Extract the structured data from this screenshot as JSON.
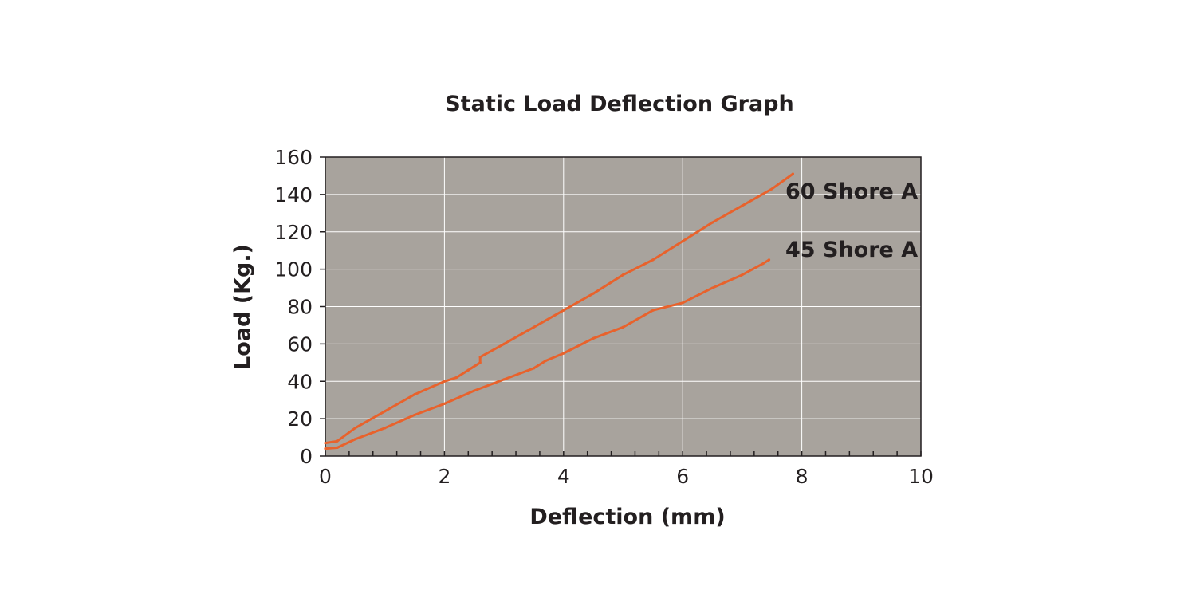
{
  "chart_data": {
    "type": "line",
    "title": "Static Load Deflection Graph",
    "xlabel": "Deflection (mm)",
    "ylabel": "Load (Kg.)",
    "xlim": [
      0,
      10
    ],
    "ylim": [
      0,
      160
    ],
    "xticks": [
      "0",
      "2",
      "4",
      "6",
      "8",
      "10"
    ],
    "yticks": [
      "0",
      "20",
      "40",
      "60",
      "80",
      "100",
      "120",
      "140",
      "160"
    ],
    "grid": true,
    "plot_background": "#a8a39d",
    "line_color": "#e8622c",
    "series": [
      {
        "name": "60 Shore A",
        "x": [
          0,
          0.2,
          0.5,
          1,
          1.5,
          2,
          2.2,
          2.4,
          2.6,
          2.6,
          3,
          3.5,
          4,
          4.5,
          5,
          5.5,
          6,
          6.5,
          7,
          7.5,
          7.85
        ],
        "y": [
          7,
          8,
          15,
          24,
          33,
          40,
          42,
          46,
          50,
          53,
          60,
          69,
          78,
          87,
          97,
          105,
          115,
          125,
          134,
          143,
          151
        ]
      },
      {
        "name": "45 Shore A",
        "x": [
          0,
          0.2,
          0.5,
          1,
          1.5,
          2,
          2.5,
          3,
          3.5,
          3.7,
          4,
          4.5,
          5,
          5.5,
          6,
          6.5,
          7,
          7.35,
          7.45
        ],
        "y": [
          4,
          4.5,
          9,
          15,
          22,
          28,
          35,
          41,
          47,
          51,
          55,
          63,
          69,
          78,
          82,
          90,
          97,
          103,
          105
        ]
      }
    ]
  }
}
